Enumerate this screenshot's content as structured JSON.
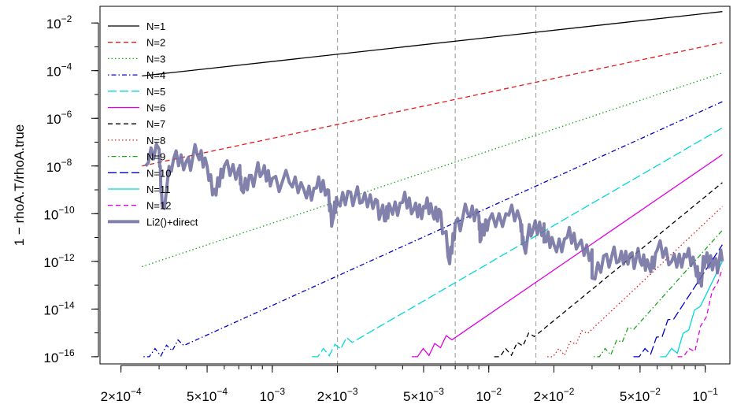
{
  "chart_data": {
    "type": "line",
    "title": "",
    "xlabel": "",
    "ylabel": "1 − rhoA.T/rhoA.true",
    "x_scale": "log",
    "y_scale": "log",
    "xlim": [
      0.00016,
      0.13
    ],
    "ylim": [
      5e-17,
      0.05
    ],
    "grid": false,
    "legend_position": "top-left",
    "x_ticks": [
      {
        "value": 0.0002,
        "mant": "2",
        "exp": "−4"
      },
      {
        "value": 0.0005,
        "mant": "5",
        "exp": "−4"
      },
      {
        "value": 0.001,
        "mant": "",
        "exp": "−3"
      },
      {
        "value": 0.002,
        "mant": "2",
        "exp": "−3"
      },
      {
        "value": 0.005,
        "mant": "5",
        "exp": "−3"
      },
      {
        "value": 0.01,
        "mant": "",
        "exp": "−2"
      },
      {
        "value": 0.02,
        "mant": "2",
        "exp": "−2"
      },
      {
        "value": 0.05,
        "mant": "5",
        "exp": "−2"
      },
      {
        "value": 0.1,
        "mant": "",
        "exp": "−1"
      }
    ],
    "y_ticks": [
      {
        "value": 1e-16,
        "exp": "−16"
      },
      {
        "value": 1e-14,
        "exp": "−14"
      },
      {
        "value": 1e-12,
        "exp": "−12"
      },
      {
        "value": 1e-10,
        "exp": "−10"
      },
      {
        "value": 1e-08,
        "exp": "−8"
      },
      {
        "value": 1e-06,
        "exp": "−6"
      },
      {
        "value": 0.0001,
        "exp": "−4"
      },
      {
        "value": 0.01,
        "exp": "−2"
      }
    ],
    "vlines": [
      0.002,
      0.007,
      0.0165
    ],
    "x_range": [
      0.00025,
      0.12
    ],
    "series": [
      {
        "name": "N=1",
        "color": "#000000",
        "dash": "solid",
        "x": [
          0.00025,
          0.12
        ],
        "y": [
          6e-05,
          0.03
        ]
      },
      {
        "name": "N=2",
        "color": "#e31a1c",
        "dash": "dashed",
        "x": [
          0.00025,
          0.12
        ],
        "y": [
          1e-08,
          0.0015
        ]
      },
      {
        "name": "N=3",
        "color": "#1aa61a",
        "dash": "dotted",
        "x": [
          0.00025,
          0.12
        ],
        "y": [
          6e-13,
          8e-05
        ]
      },
      {
        "name": "N=4",
        "color": "#0000cd",
        "dash": "dotdash",
        "x": [
          0.0003,
          0.12
        ],
        "y": [
          1e-16,
          5e-06
        ]
      },
      {
        "name": "N=5",
        "color": "#00d8d8",
        "dash": "longdash",
        "x": [
          0.0018,
          0.12
        ],
        "y": [
          1e-16,
          4e-07
        ]
      },
      {
        "name": "N=6",
        "color": "#e000e0",
        "dash": "solid",
        "x": [
          0.0052,
          0.12
        ],
        "y": [
          1e-16,
          3e-08
        ]
      },
      {
        "name": "N=7",
        "color": "#000000",
        "dash": "dashed",
        "x": [
          0.0125,
          0.12
        ],
        "y": [
          1e-16,
          2e-09
        ]
      },
      {
        "name": "N=8",
        "color": "#e31a1c",
        "dash": "dotted",
        "x": [
          0.022,
          0.12
        ],
        "y": [
          1e-16,
          2e-10
        ]
      },
      {
        "name": "N=9",
        "color": "#1aa61a",
        "dash": "dotdash",
        "x": [
          0.036,
          0.12
        ],
        "y": [
          1e-16,
          2e-11
        ]
      },
      {
        "name": "N=10",
        "color": "#0000cd",
        "dash": "longdash",
        "x": [
          0.055,
          0.12
        ],
        "y": [
          1e-16,
          5e-12
        ]
      },
      {
        "name": "N=11",
        "color": "#00d8d8",
        "dash": "solid",
        "x": [
          0.073,
          0.12
        ],
        "y": [
          1e-16,
          1e-12
        ]
      },
      {
        "name": "N=12",
        "color": "#e000e0",
        "dash": "dashed",
        "x": [
          0.088,
          0.12
        ],
        "y": [
          1e-16,
          5e-13
        ]
      }
    ],
    "noise_series": {
      "name": "Li2()+direct",
      "color": "#6b6b9e",
      "x": [
        0.00026,
        0.0003,
        0.00035,
        0.0004,
        0.00045,
        0.0005,
        0.0006,
        0.0007,
        0.0008,
        0.0009,
        0.001,
        0.0012,
        0.0014,
        0.0016,
        0.0018,
        0.002,
        0.0023,
        0.0026,
        0.003,
        0.0035,
        0.004,
        0.0045,
        0.005,
        0.0055,
        0.006,
        0.007,
        0.008,
        0.009,
        0.01,
        0.012,
        0.014,
        0.016,
        0.018,
        0.02,
        0.023,
        0.026,
        0.03,
        0.035,
        0.04,
        0.045,
        0.05,
        0.06,
        0.07,
        0.08,
        0.09,
        0.1,
        0.11,
        0.12
      ],
      "y": [
        1e-08,
        5e-08,
        2e-08,
        1.5e-08,
        3e-08,
        1e-08,
        1e-08,
        8e-09,
        4e-09,
        5e-09,
        3e-09,
        2e-09,
        1e-09,
        1.2e-09,
        1e-09,
        3e-10,
        8e-10,
        3e-10,
        4e-10,
        2e-10,
        3e-10,
        1.5e-10,
        2e-10,
        1e-10,
        1.2e-10,
        4e-11,
        1e-10,
        8e-11,
        5e-11,
        1e-10,
        5e-11,
        2e-11,
        3e-11,
        5e-12,
        1e-11,
        5e-12,
        3e-12,
        2e-12,
        1e-12,
        2e-12,
        1e-12,
        3e-12,
        1e-12,
        2e-12,
        5e-13,
        1e-12,
        1e-12,
        1e-12
      ],
      "dips": [
        {
          "x": 0.00031,
          "y": 2e-10
        },
        {
          "x": 0.00055,
          "y": 6e-10
        },
        {
          "x": 0.00072,
          "y": 1e-09
        },
        {
          "x": 0.0019,
          "y": 5e-11
        },
        {
          "x": 0.0033,
          "y": 5e-11
        },
        {
          "x": 0.0066,
          "y": 8e-13
        },
        {
          "x": 0.0092,
          "y": 8e-12
        },
        {
          "x": 0.0145,
          "y": 5e-12
        },
        {
          "x": 0.018,
          "y": 1e-11
        },
        {
          "x": 0.03,
          "y": 2e-13
        },
        {
          "x": 0.055,
          "y": 6e-13
        },
        {
          "x": 0.095,
          "y": 2e-13
        }
      ]
    }
  }
}
